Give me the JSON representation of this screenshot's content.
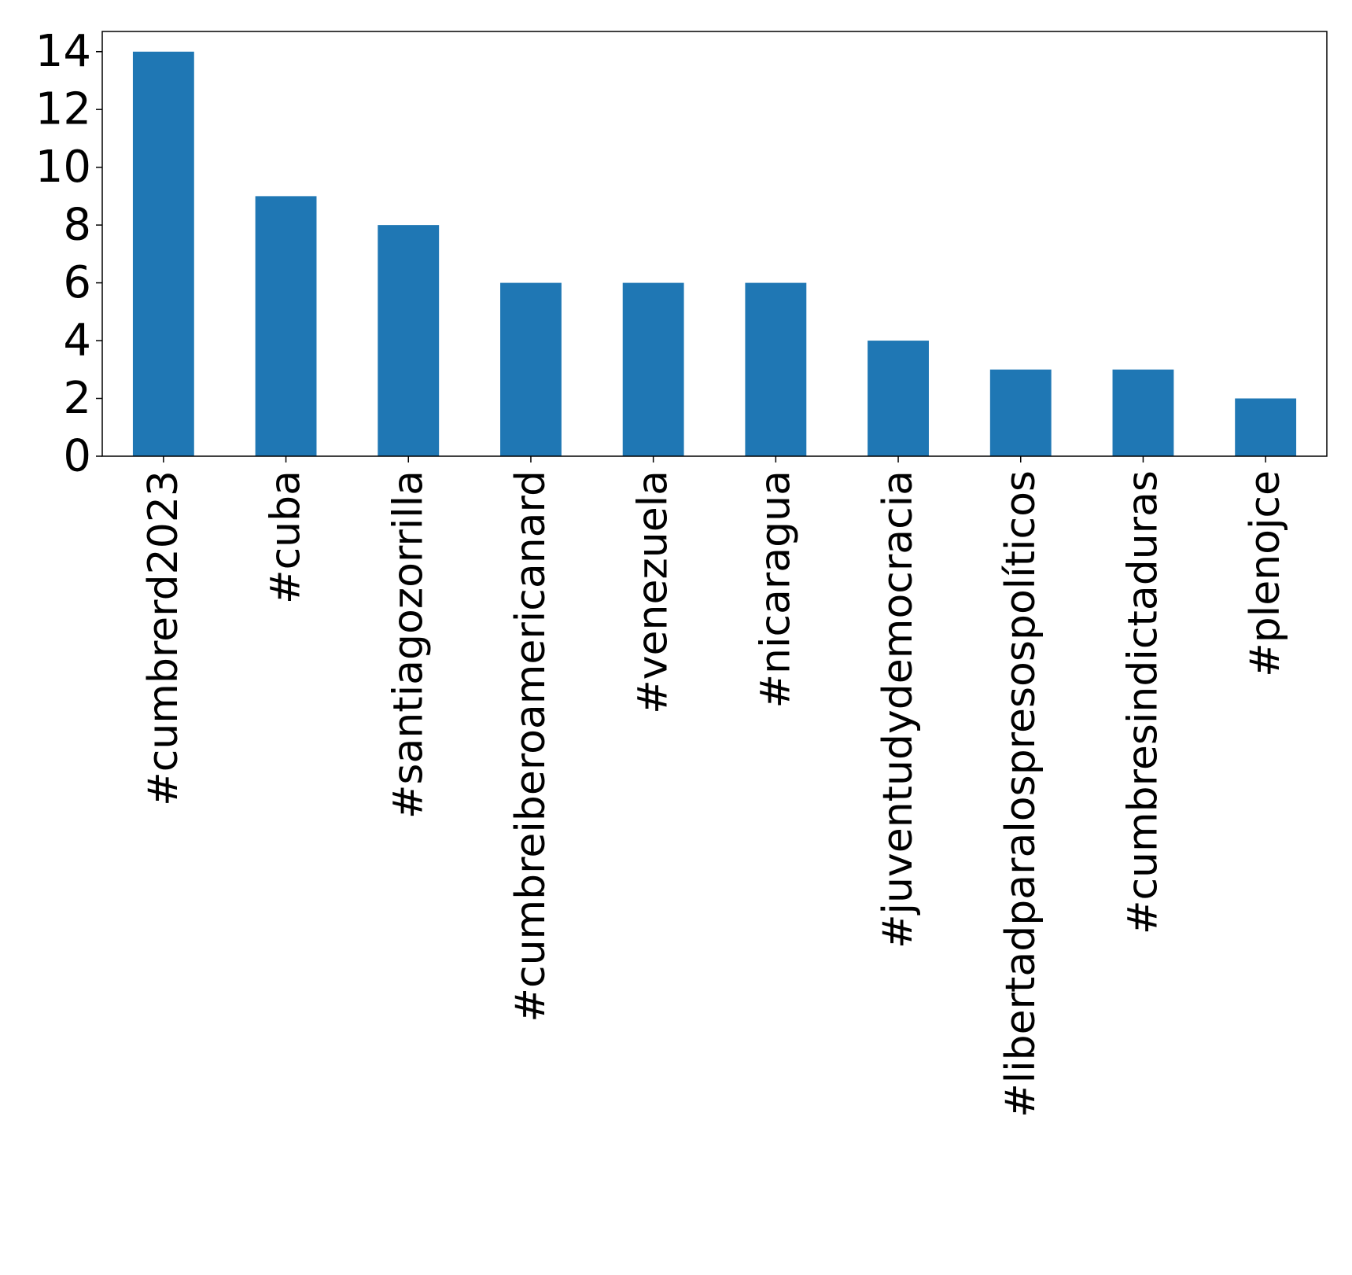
{
  "chart_data": {
    "type": "bar",
    "title": "",
    "xlabel": "",
    "ylabel": "",
    "categories": [
      "#cumbrerd2023",
      "#cuba",
      "#santiagozorrilla",
      "#cumbreiberoamericanard",
      "#venezuela",
      "#nicaragua",
      "#juventudydemocracia",
      "#libertadparalospresospolíticos",
      "#cumbresindictaduras",
      "#plenojce"
    ],
    "values": [
      14,
      9,
      8,
      6,
      6,
      6,
      4,
      3,
      3,
      2
    ],
    "ylim": [
      0,
      14.7
    ],
    "yticks": [
      0,
      2,
      4,
      6,
      8,
      10,
      12,
      14
    ],
    "bar_color": "#1f77b4",
    "grid": false,
    "legend": "none"
  }
}
